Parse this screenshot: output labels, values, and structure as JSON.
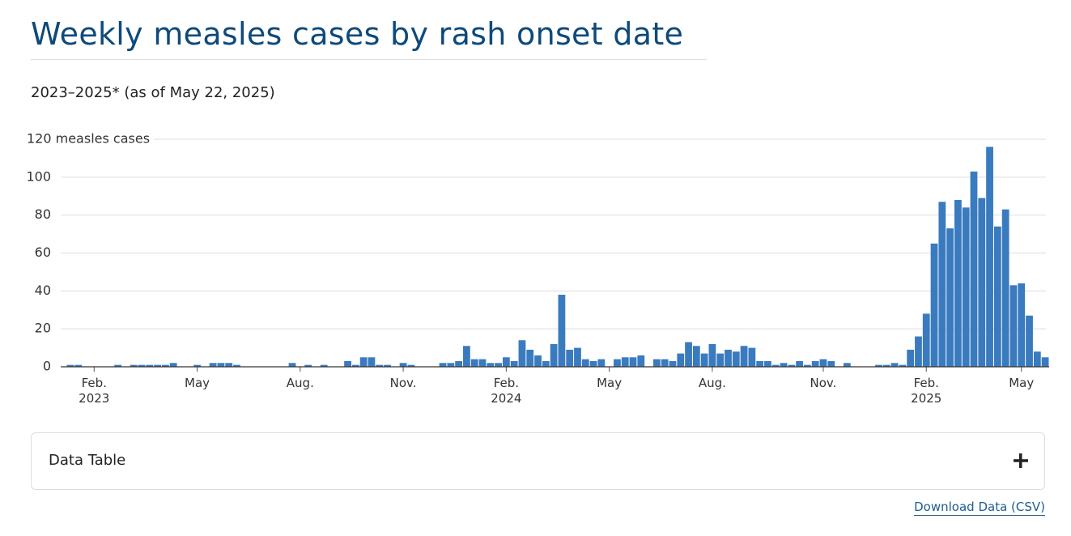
{
  "chart_data": {
    "type": "bar",
    "title": "Weekly measles cases by rash onset date",
    "subtitle": "2023–2025* (as of May 22, 2025)",
    "categories": [
      null,
      null,
      null,
      "Feb.\n2023",
      null,
      null,
      null,
      null,
      null,
      null,
      null,
      null,
      null,
      null,
      null,
      null,
      "May",
      null,
      null,
      null,
      null,
      null,
      null,
      null,
      null,
      null,
      null,
      null,
      null,
      "Aug.",
      null,
      null,
      null,
      null,
      null,
      null,
      null,
      null,
      null,
      null,
      null,
      null,
      "Nov.",
      null,
      null,
      null,
      null,
      null,
      null,
      null,
      null,
      null,
      null,
      null,
      null,
      "Feb.\n2024",
      null,
      null,
      null,
      null,
      null,
      null,
      null,
      null,
      null,
      null,
      null,
      null,
      "May",
      null,
      null,
      null,
      null,
      null,
      null,
      null,
      null,
      null,
      null,
      null,
      null,
      "Aug.",
      null,
      null,
      null,
      null,
      null,
      null,
      null,
      null,
      null,
      null,
      null,
      null,
      null,
      "Nov.",
      null,
      null,
      null,
      null,
      null,
      null,
      null,
      null,
      null,
      null,
      null,
      null,
      "Feb.\n2025",
      null,
      null,
      null,
      null,
      null,
      null,
      null,
      null,
      null,
      null,
      null,
      "May",
      null,
      null,
      null
    ],
    "values": [
      1,
      1,
      0,
      0,
      0,
      0,
      1,
      0,
      1,
      1,
      1,
      1,
      1,
      2,
      0,
      0,
      1,
      0,
      2,
      2,
      2,
      1,
      0,
      0,
      0,
      0,
      0,
      0,
      2,
      0,
      1,
      0,
      1,
      0,
      0,
      3,
      1,
      5,
      5,
      1,
      1,
      0,
      2,
      1,
      0,
      0,
      0,
      2,
      2,
      3,
      11,
      4,
      4,
      2,
      2,
      5,
      3,
      14,
      9,
      6,
      3,
      12,
      38,
      9,
      10,
      4,
      3,
      4,
      0,
      4,
      5,
      5,
      6,
      0,
      4,
      4,
      3,
      7,
      13,
      11,
      7,
      12,
      7,
      9,
      8,
      11,
      10,
      3,
      3,
      1,
      2,
      1,
      3,
      1,
      3,
      4,
      3,
      0,
      2,
      0,
      0,
      0,
      1,
      1,
      2,
      1,
      9,
      16,
      28,
      65,
      87,
      73,
      88,
      84,
      103,
      89,
      116,
      74,
      83,
      43,
      44,
      27,
      8,
      5
    ],
    "color": "#3a7bbf",
    "ylim": [
      0,
      120
    ],
    "yticks": [
      0,
      20,
      40,
      60,
      80,
      100,
      {
        "value": 120,
        "label": "120 measles cases"
      }
    ],
    "grid": true
  },
  "data_table": {
    "label": "Data Table"
  },
  "download_link": "Download Data (CSV)"
}
